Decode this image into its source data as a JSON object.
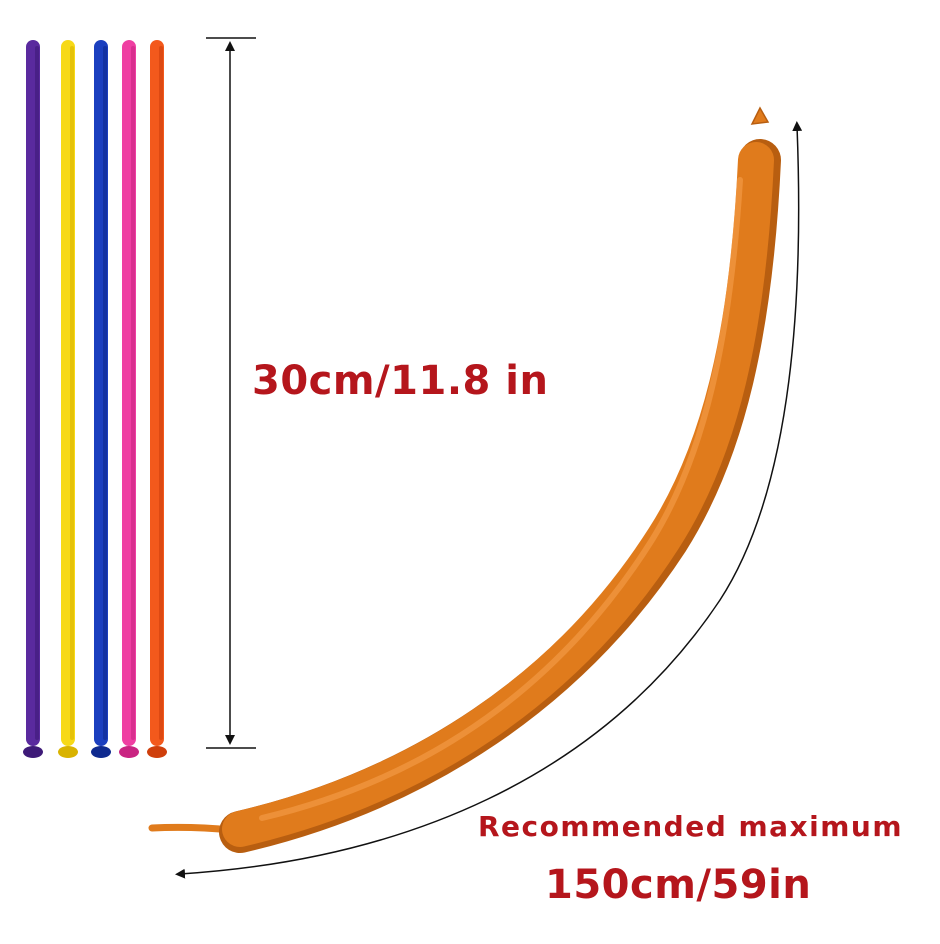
{
  "palette": {
    "text_red": "#b5161c",
    "arrow": "#111111",
    "inflated_orange": "#e07b1c",
    "inflated_highlight": "#f29a45",
    "inflated_shadow": "#b85e10"
  },
  "balloons": [
    {
      "name": "purple-balloon",
      "color": "#5a2a9e",
      "shade": "#3e1a78"
    },
    {
      "name": "yellow-balloon",
      "color": "#f7d917",
      "shade": "#d9b300"
    },
    {
      "name": "blue-balloon",
      "color": "#1b3fbf",
      "shade": "#0f2a8f"
    },
    {
      "name": "pink-balloon",
      "color": "#ef3fa2",
      "shade": "#c92482"
    },
    {
      "name": "orange-balloon",
      "color": "#f3591c",
      "shade": "#cf3f0b"
    }
  ],
  "labels": {
    "deflated_length": "30cm/11.8 in",
    "max_caption": "Recommended  maximum",
    "max_length": "150cm/59in"
  },
  "icons": {
    "vertical_arrow": "double-arrow-icon",
    "curved_arrow": "curved-arrow-icon"
  }
}
